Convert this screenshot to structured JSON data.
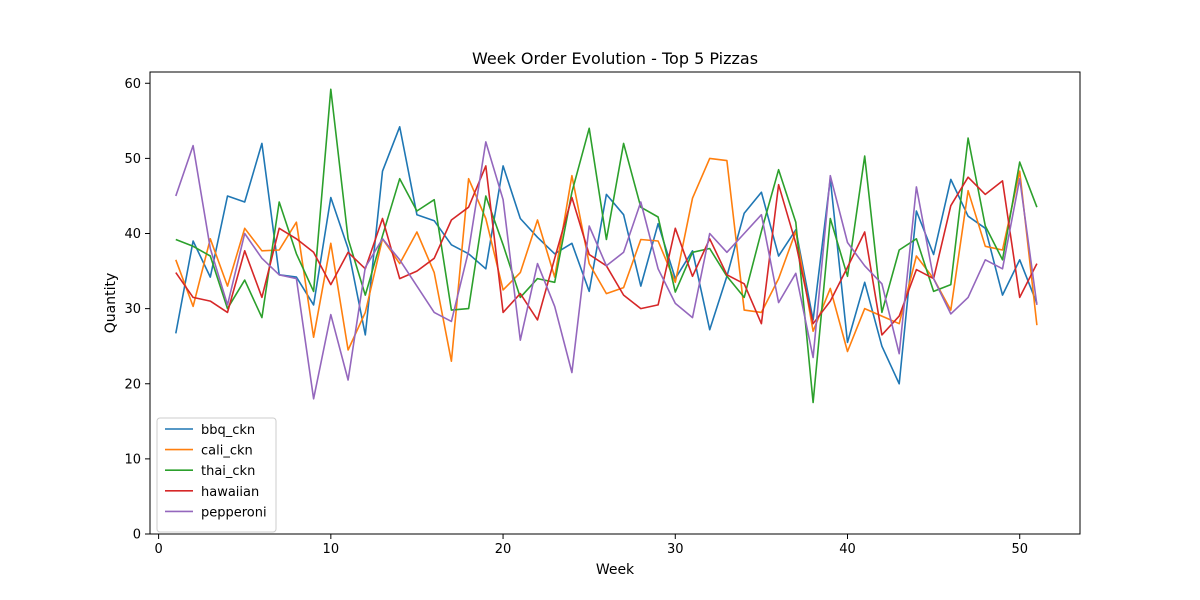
{
  "chart_data": {
    "type": "line",
    "title": "Week Order Evolution - Top 5 Pizzas",
    "xlabel": "Week",
    "ylabel": "Quantity",
    "xlim": [
      -0.5,
      53.5
    ],
    "ylim": [
      0,
      61.5
    ],
    "xticks": [
      0,
      10,
      20,
      30,
      40,
      50
    ],
    "yticks": [
      0,
      10,
      20,
      30,
      40,
      50,
      60
    ],
    "grid": false,
    "legend": "lower-left",
    "x": [
      1,
      2,
      3,
      4,
      5,
      6,
      7,
      8,
      9,
      10,
      11,
      12,
      13,
      14,
      15,
      16,
      17,
      18,
      19,
      20,
      21,
      22,
      23,
      24,
      25,
      26,
      27,
      28,
      29,
      30,
      31,
      32,
      33,
      34,
      35,
      36,
      37,
      38,
      39,
      40,
      41,
      42,
      43,
      44,
      45,
      46,
      47,
      48,
      49,
      50,
      51
    ],
    "series": [
      {
        "name": "bbq_ckn",
        "color": "#1f77b4",
        "values": [
          26.7,
          39,
          34.2,
          45,
          44.2,
          52,
          34.5,
          34.2,
          30.5,
          44.8,
          38,
          26.5,
          48.3,
          54.2,
          42.5,
          41.7,
          38.5,
          37.3,
          35.3,
          49,
          42,
          39.5,
          37.3,
          38.7,
          32.3,
          45.2,
          42.5,
          33,
          41.3,
          34,
          37.7,
          27.2,
          34.3,
          42.7,
          45.5,
          37,
          40.5,
          28.5,
          47.3,
          25.5,
          33.5,
          25,
          20,
          43,
          37.2,
          47.2,
          42.3,
          40.7,
          31.8,
          36.5,
          30.7
        ]
      },
      {
        "name": "cali_ckn",
        "color": "#ff7f0e",
        "values": [
          36.5,
          30.3,
          39.3,
          33,
          40.7,
          37.7,
          37.8,
          41.5,
          26.2,
          38.7,
          24.5,
          29.5,
          39.3,
          36,
          40.2,
          34.8,
          23,
          47.3,
          42,
          32.5,
          34.8,
          41.8,
          34.2,
          47.7,
          36,
          32,
          32.8,
          39.2,
          39,
          33.5,
          44.7,
          50,
          49.7,
          29.8,
          29.5,
          34,
          40.3,
          27,
          32.7,
          24.3,
          30,
          29,
          28,
          37,
          34,
          29.8,
          45.7,
          38.3,
          37.8,
          48.3,
          27.8
        ]
      },
      {
        "name": "thai_ckn",
        "color": "#2ca02c",
        "values": [
          39.2,
          38.3,
          37,
          30,
          33.8,
          28.8,
          44.2,
          37.3,
          32.3,
          59.2,
          39.3,
          31.8,
          39.7,
          47.3,
          43,
          44.5,
          29.8,
          30,
          45,
          38.5,
          31.5,
          34,
          33.5,
          45.5,
          54,
          39.2,
          52,
          43.5,
          42.2,
          32.2,
          37.5,
          38,
          34.3,
          31.5,
          40.3,
          48.5,
          41.5,
          17.5,
          42,
          34.3,
          50.3,
          29.5,
          37.8,
          39.3,
          32.3,
          33.2,
          52.7,
          41,
          36.5,
          49.5,
          43.5
        ]
      },
      {
        "name": "hawaiian",
        "color": "#d62728",
        "values": [
          34.8,
          31.5,
          31,
          29.5,
          37.7,
          31.5,
          40.7,
          39.3,
          37.5,
          33.2,
          37.5,
          35.3,
          42,
          34,
          35,
          36.7,
          41.8,
          43.5,
          49,
          29.5,
          32,
          28.5,
          36.7,
          44.8,
          37.2,
          35.7,
          31.8,
          30,
          30.5,
          40.7,
          34.3,
          39.3,
          34.5,
          33.3,
          28,
          46.5,
          38.7,
          28,
          31,
          35.5,
          40.2,
          26.5,
          29,
          35.2,
          34,
          43.7,
          47.5,
          45.2,
          47,
          31.5,
          36
        ]
      },
      {
        "name": "pepperoni",
        "color": "#9467bd",
        "values": [
          45,
          51.7,
          38,
          30.5,
          40,
          36.7,
          34.5,
          34,
          18,
          29.2,
          20.5,
          35.5,
          39.3,
          36.5,
          33,
          29.5,
          28.3,
          37.7,
          52.2,
          44.5,
          25.8,
          36,
          30.3,
          21.5,
          41,
          35.7,
          37.5,
          44.2,
          35.3,
          30.7,
          28.8,
          40,
          37.5,
          40,
          42.5,
          30.8,
          34.7,
          23.5,
          47.7,
          38.8,
          35.7,
          33.3,
          24,
          46.2,
          34,
          29.3,
          31.5,
          36.5,
          35.3,
          47.3,
          30.5
        ]
      }
    ]
  }
}
